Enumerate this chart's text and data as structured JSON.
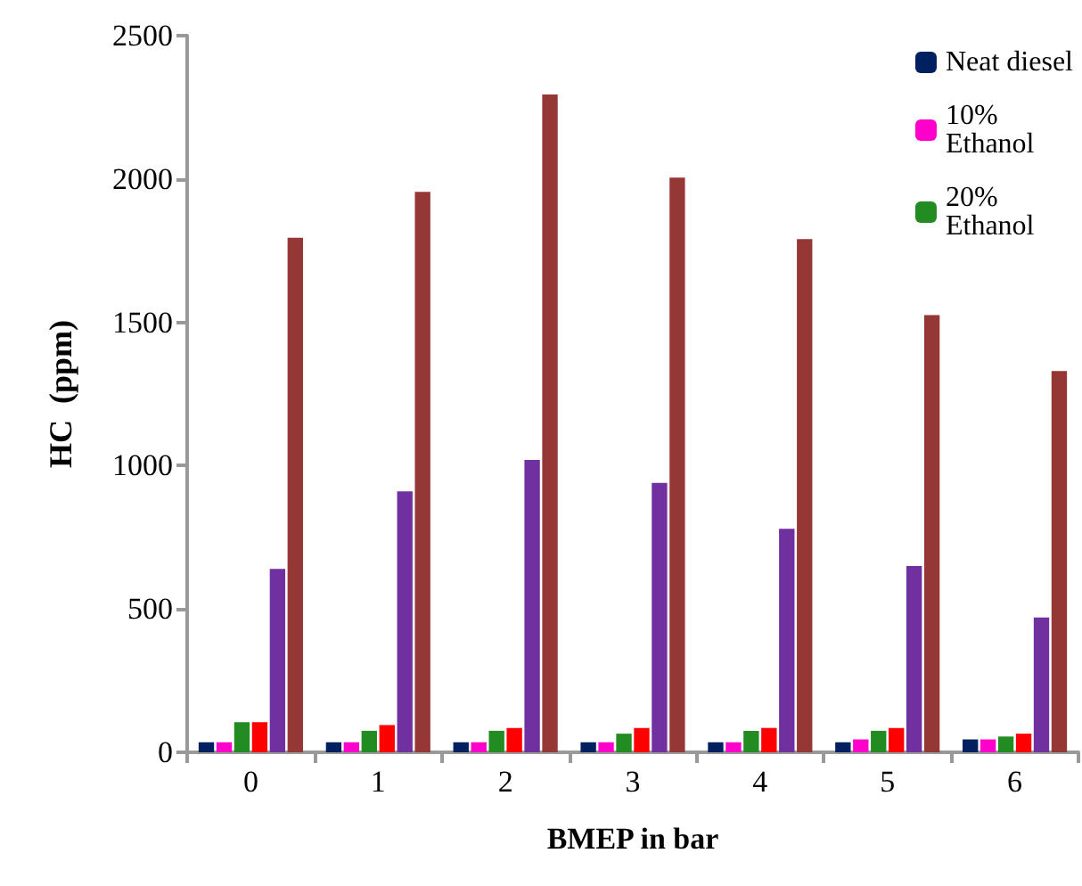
{
  "chart_data": {
    "type": "bar",
    "xlabel": "BMEP in bar",
    "ylabel": "HC  (ppm)",
    "categories": [
      "0",
      "1",
      "2",
      "3",
      "4",
      "5",
      "6"
    ],
    "series": [
      {
        "name": "Neat diesel",
        "color": "#002060",
        "values": [
          35,
          35,
          35,
          35,
          35,
          35,
          45
        ]
      },
      {
        "name": "10% Ethanol",
        "color": "#ff00cc",
        "values": [
          35,
          35,
          35,
          35,
          35,
          45,
          45
        ]
      },
      {
        "name": "20% Ethanol",
        "color": "#228b22",
        "values": [
          105,
          75,
          75,
          65,
          75,
          75,
          55
        ]
      },
      {
        "color": "#ff0000",
        "values": [
          105,
          95,
          85,
          85,
          85,
          85,
          65
        ]
      },
      {
        "color": "#7030a0",
        "values": [
          640,
          910,
          1020,
          940,
          780,
          650,
          470
        ]
      },
      {
        "color": "#953735",
        "values": [
          1795,
          1955,
          2295,
          2005,
          1790,
          1525,
          1330
        ]
      }
    ],
    "ylim": [
      0,
      2500
    ],
    "yticks": [
      0,
      500,
      1000,
      1500,
      2000,
      2500
    ],
    "grid": false,
    "legend": "top right"
  }
}
